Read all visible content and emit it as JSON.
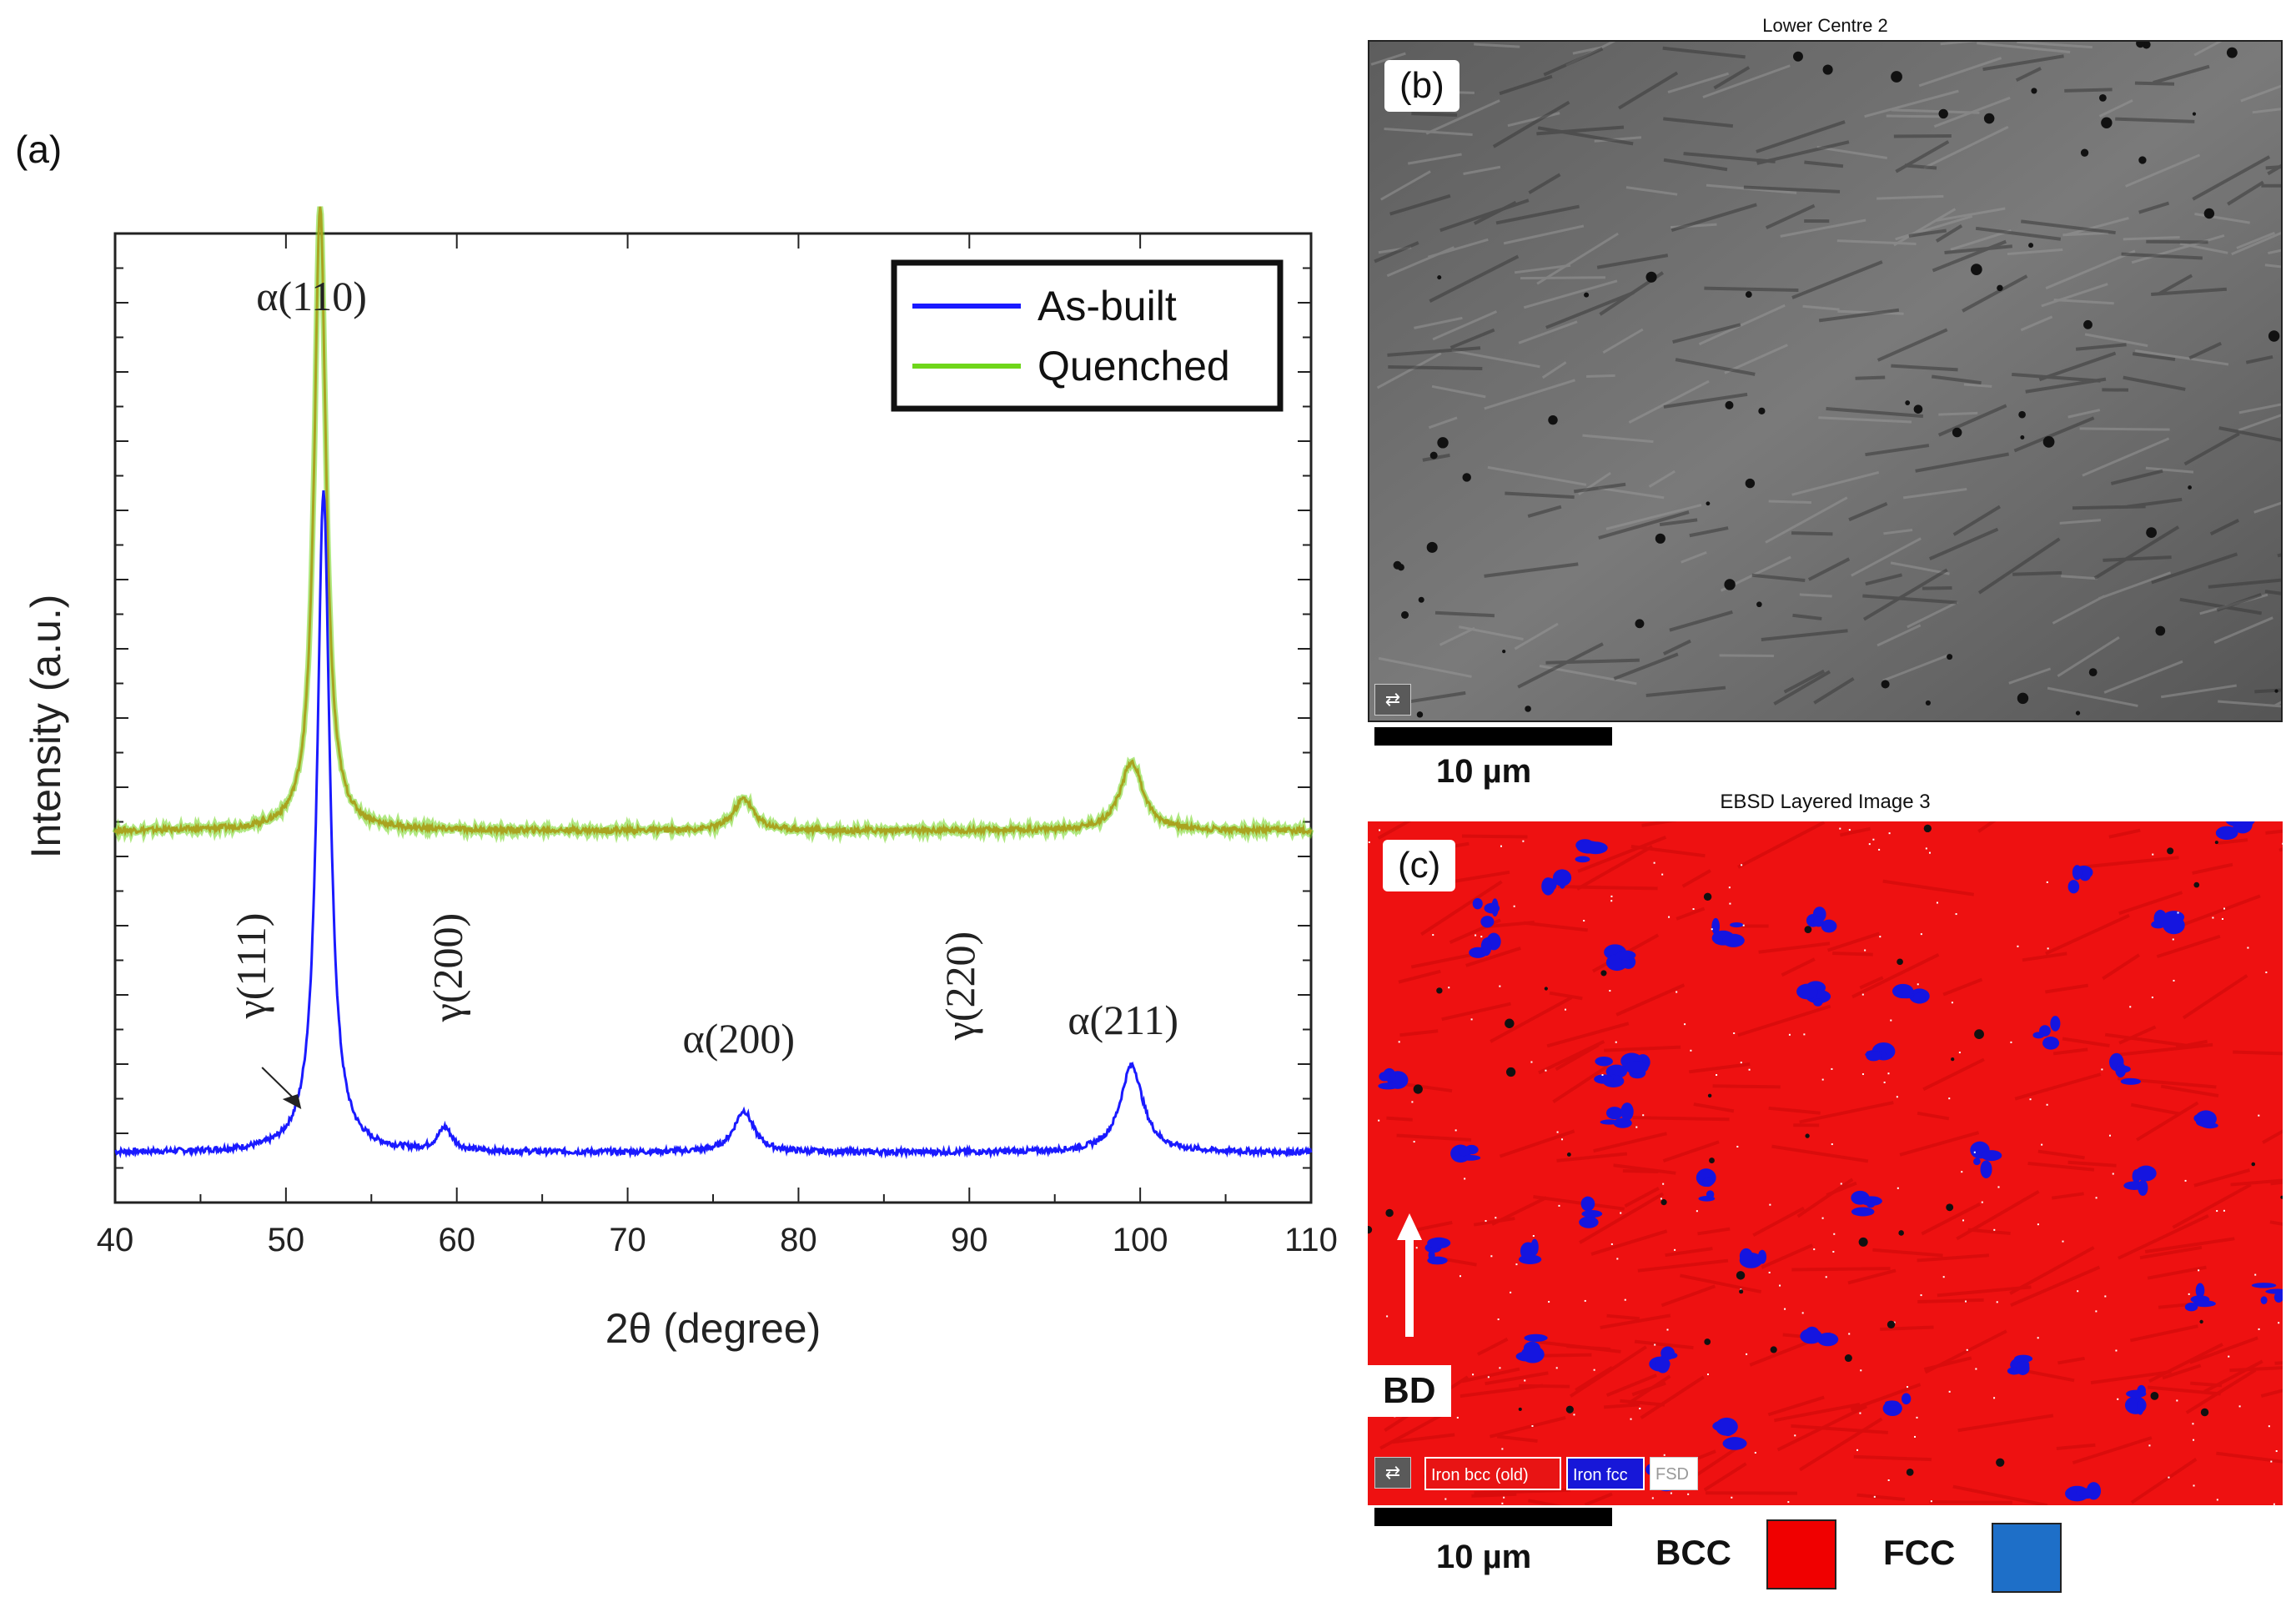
{
  "panel_a": {
    "label": "(a)",
    "chart_data": {
      "type": "line",
      "xlabel": "2θ (degree)",
      "ylabel": "Intensity (a.u.)",
      "xlim": [
        40,
        110
      ],
      "xticks": [
        "40",
        "50",
        "60",
        "70",
        "80",
        "90",
        "100",
        "110"
      ],
      "legend_position": "top-right",
      "series": [
        {
          "name": "As-built",
          "color": "#1a1aff",
          "offset": 0.0,
          "peaks": [
            {
              "x": 52.2,
              "h": 0.72,
              "w": 0.45
            },
            {
              "x": 59.3,
              "h": 0.025,
              "w": 0.5
            },
            {
              "x": 76.8,
              "h": 0.045,
              "w": 0.7
            },
            {
              "x": 99.5,
              "h": 0.095,
              "w": 0.8
            }
          ]
        },
        {
          "name": "Quenched",
          "color": "#6fd61a",
          "line_color": "#a9a320",
          "offset": 0.35,
          "peaks": [
            {
              "x": 52.0,
              "h": 0.68,
              "w": 0.42
            },
            {
              "x": 76.8,
              "h": 0.035,
              "w": 0.7
            },
            {
              "x": 99.5,
              "h": 0.075,
              "w": 0.8
            }
          ]
        }
      ],
      "annotations": [
        {
          "text": "α(110)",
          "x": 51.5,
          "anchor": "upper"
        },
        {
          "text": "γ(111)",
          "x": 48.0,
          "anchor": "vertical"
        },
        {
          "text": "γ(200)",
          "x": 59.5,
          "anchor": "vertical"
        },
        {
          "text": "α(200)",
          "x": 76.5,
          "anchor": "lower"
        },
        {
          "text": "γ(220)",
          "x": 89.5,
          "anchor": "vertical"
        },
        {
          "text": "α(211)",
          "x": 99.0,
          "anchor": "lower"
        }
      ]
    }
  },
  "panel_b": {
    "title": "Lower Centre 2",
    "label": "(b)",
    "scale": "10 µm"
  },
  "panel_c": {
    "title": "EBSD Layered Image 3",
    "label": "(c)",
    "direction": "BD",
    "scale": "10 µm",
    "chips": [
      "Iron bcc (old)",
      "Iron fcc",
      "FSD"
    ],
    "legend": [
      {
        "label": "BCC",
        "color": "#f00000"
      },
      {
        "label": "FCC",
        "color": "#1e6fc8"
      }
    ]
  }
}
